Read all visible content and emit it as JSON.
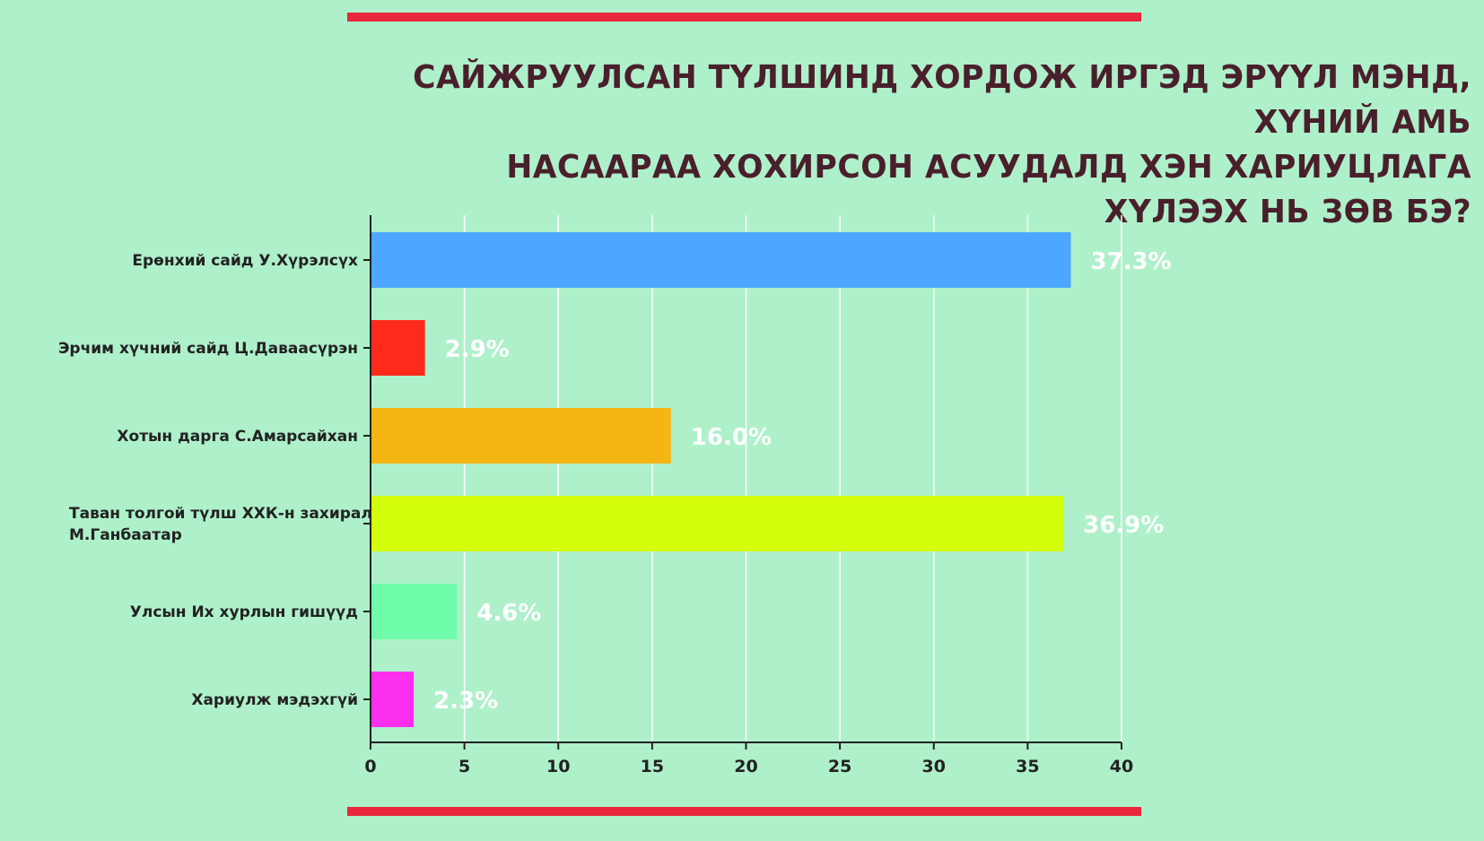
{
  "title_lines": [
    "САЙЖРУУЛСАН ТҮЛШИНД ХОРДОЖ ИРГЭД ЭРҮҮЛ МЭНД, ХҮНИЙ АМЬ",
    "НАСААРАА ХОХИРСОН АСУУДАЛД ХЭН ХАРИУЦЛАГА ХҮЛЭЭХ НЬ ЗӨВ БЭ?"
  ],
  "colors": {
    "background": "#aef0ca",
    "accent_rule": "#e8273a",
    "title": "#4a1f2c"
  },
  "chart_data": {
    "type": "bar",
    "orientation": "horizontal",
    "title": "САЙЖРУУЛСАН ТҮЛШИНД ХОРДОЖ ИРГЭД ЭРҮҮЛ МЭНД, ХҮНИЙ АМЬ НАСААРАА ХОХИРСОН АСУУДАЛД ХЭН ХАРИУЦЛАГА ХҮЛЭЭХ НЬ ЗӨВ БЭ?",
    "xlabel": "",
    "ylabel": "",
    "xlim": [
      0,
      40
    ],
    "xticks": [
      0,
      5,
      10,
      15,
      20,
      25,
      30,
      35,
      40
    ],
    "grid": "vertical",
    "categories": [
      [
        "Ерөнхий сайд У.Хүрэлсүх"
      ],
      [
        "Эрчим хүчний сайд Ц.Даваасүрэн"
      ],
      [
        "Хотын дарга С.Амарсайхан"
      ],
      [
        "Таван толгой түлш ХХК-н захирал",
        "М.Ганбаатар"
      ],
      [
        "Улсын Их хурлын гишүүд"
      ],
      [
        "Хариулж мэдэхгүй"
      ]
    ],
    "values": [
      37.3,
      2.9,
      16.0,
      36.9,
      4.6,
      2.3
    ],
    "value_labels": [
      "37.3%",
      "2.9%",
      "16.0%",
      "36.9%",
      "4.6%",
      "2.3%"
    ],
    "bar_colors": [
      "#4da6ff",
      "#ff2a1c",
      "#f5b512",
      "#d4ff0a",
      "#6ffcaa",
      "#fb30ee"
    ]
  }
}
